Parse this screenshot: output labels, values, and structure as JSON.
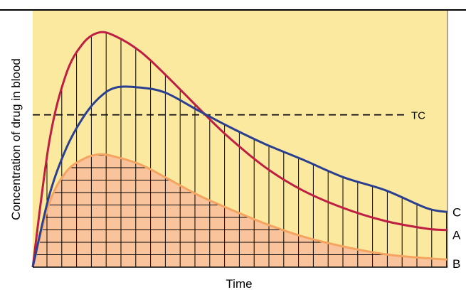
{
  "chart_data": {
    "type": "line",
    "xlabel": "Time",
    "ylabel": "Concentration of drug in blood",
    "x_ticks": [],
    "y_ticks": [],
    "grid": false,
    "colors": {
      "background": "#fbe9a0",
      "area_fill": "#f9c49c",
      "hatch": "#000000",
      "A": "#bf1e43",
      "B": "#f4a460",
      "C": "#2a3f8f",
      "threshold": "#000000"
    },
    "threshold": {
      "name": "TC",
      "value": 0.594,
      "style": "dashed"
    },
    "series": [
      {
        "name": "A",
        "x": [
          0,
          0.04,
          0.08,
          0.12,
          0.16,
          0.2,
          0.26,
          0.32,
          0.4,
          0.47,
          0.56,
          0.65,
          0.75,
          0.85,
          0.95,
          1.0
        ],
        "values": [
          0,
          0.49,
          0.75,
          0.87,
          0.915,
          0.9,
          0.84,
          0.75,
          0.62,
          0.51,
          0.39,
          0.3,
          0.23,
          0.18,
          0.15,
          0.145
        ]
      },
      {
        "name": "B",
        "x": [
          0,
          0.04,
          0.08,
          0.12,
          0.16,
          0.2,
          0.26,
          0.32,
          0.4,
          0.47,
          0.56,
          0.65,
          0.75,
          0.85,
          0.95,
          1.0
        ],
        "values": [
          0,
          0.25,
          0.37,
          0.42,
          0.44,
          0.43,
          0.4,
          0.35,
          0.28,
          0.23,
          0.17,
          0.12,
          0.08,
          0.05,
          0.035,
          0.03
        ]
      },
      {
        "name": "C",
        "x": [
          0,
          0.04,
          0.08,
          0.12,
          0.16,
          0.2,
          0.26,
          0.32,
          0.4,
          0.47,
          0.56,
          0.65,
          0.75,
          0.85,
          0.95,
          1.0
        ],
        "values": [
          0,
          0.28,
          0.46,
          0.58,
          0.66,
          0.7,
          0.7,
          0.68,
          0.61,
          0.55,
          0.48,
          0.42,
          0.35,
          0.3,
          0.23,
          0.215
        ]
      }
    ],
    "hatch_region": "area under the highest curve; vertical lines everywhere, horizontal lines above area under B"
  }
}
